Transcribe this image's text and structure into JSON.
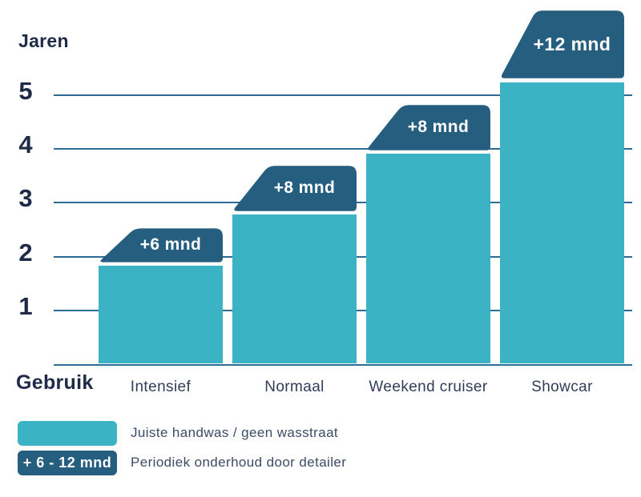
{
  "y_axis_title": "Jaren",
  "x_axis_title": "Gebruik",
  "chart_data": {
    "type": "bar",
    "categories": [
      "Intensief",
      "Normaal",
      "Weekend cruiser",
      "Showcar"
    ],
    "series": [
      {
        "name": "Juiste handwas / geen wasstraat",
        "unit": "jaren",
        "values": [
          1.83,
          2.78,
          3.91,
          5.24
        ]
      },
      {
        "name": "Periodiek onderhoud door detailer",
        "unit": "maanden extra",
        "cap_months": [
          6,
          8,
          8,
          12
        ],
        "cap_labels": [
          "+6 mnd",
          "+8 mnd",
          "+8 mnd",
          "+12 mnd"
        ]
      }
    ],
    "title": "",
    "xlabel": "Gebruik",
    "ylabel": "Jaren",
    "yticks": [
      1,
      2,
      3,
      4,
      5
    ],
    "ylim": [
      0,
      5.6
    ],
    "grid": "horizontal",
    "legend_position": "bottom-left"
  },
  "legend": {
    "items": [
      {
        "swatch_label": "",
        "label": "Juiste handwas / geen wasstraat"
      },
      {
        "swatch_label": "+ 6 - 12 mnd",
        "label": "Periodiek onderhoud door detailer"
      }
    ]
  },
  "colors": {
    "bar_fill": "#3CB3C4",
    "cap_fill": "#265E80",
    "gridline": "#2E6B95",
    "axis_text": "#1F2A47",
    "category_text": "#303D58",
    "legend_text": "#3D4C66",
    "cap_text": "#FFFFFF"
  }
}
